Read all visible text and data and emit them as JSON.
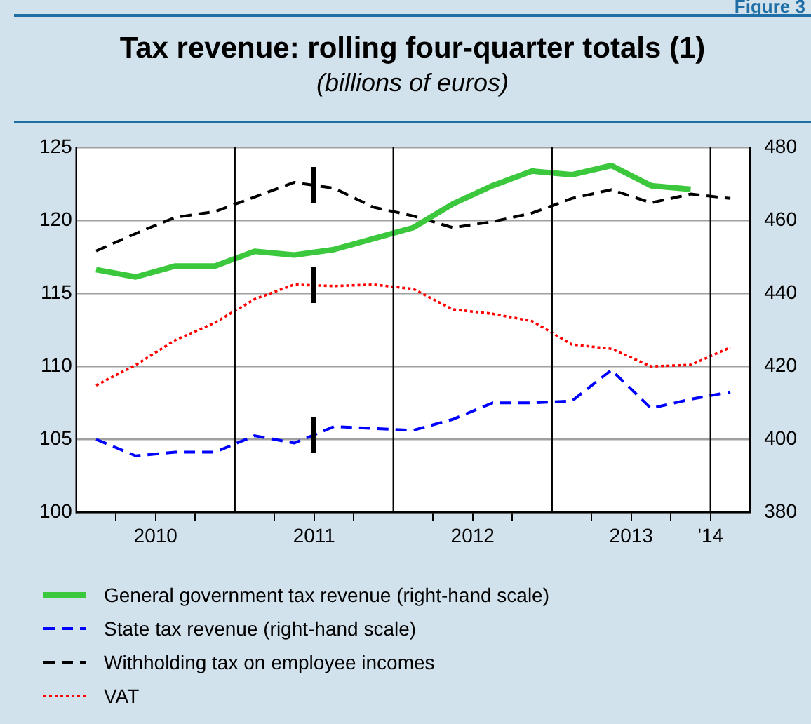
{
  "chart_data": {
    "type": "line",
    "title": "Tax revenue: rolling four-quarter totals (1)",
    "subtitle": "(billions of euros)",
    "annotations": [
      "Figure 3"
    ],
    "x": [
      2010.125,
      2010.375,
      2010.625,
      2010.875,
      2011.125,
      2011.375,
      2011.625,
      2011.875,
      2012.125,
      2012.375,
      2012.625,
      2012.875,
      2013.125,
      2013.375,
      2013.625,
      2013.875,
      2014.125
    ],
    "xlim": [
      2010,
      2014.25
    ],
    "xticks": [
      {
        "value": 2010.25,
        "label": null
      },
      {
        "value": 2010.5,
        "label": "2010"
      },
      {
        "value": 2010.75,
        "label": null
      },
      {
        "value": 2011.25,
        "label": null
      },
      {
        "value": 2011.5,
        "label": "2011"
      },
      {
        "value": 2011.75,
        "label": null
      },
      {
        "value": 2012.25,
        "label": null
      },
      {
        "value": 2012.5,
        "label": "2012"
      },
      {
        "value": 2012.75,
        "label": null
      },
      {
        "value": 2013.25,
        "label": null
      },
      {
        "value": 2013.5,
        "label": "2013"
      },
      {
        "value": 2013.75,
        "label": null
      },
      {
        "value": 2014,
        "label": "'14"
      }
    ],
    "ylim": [
      100,
      125
    ],
    "yticks": [
      100,
      105,
      110,
      115,
      120,
      125
    ],
    "y2lim": [
      380,
      480
    ],
    "y2ticks": [
      380,
      400,
      420,
      440,
      460,
      480
    ],
    "grid": "y",
    "legend": "bottom",
    "marker": "none",
    "ref_lines": [
      {
        "axis": "x",
        "value": 2011,
        "label": null,
        "color": "#000000"
      },
      {
        "axis": "x",
        "value": 2012,
        "label": null,
        "color": "#000000"
      },
      {
        "axis": "x",
        "value": 2013,
        "label": null,
        "color": "#000000"
      },
      {
        "axis": "x",
        "value": 2014,
        "label": null,
        "color": "#000000"
      }
    ],
    "series": [
      {
        "name": "General government tax revenue (right-hand scale)",
        "color": "#3cc83c",
        "axis": "y2",
        "line_style": "solid",
        "values": [
          446.5,
          444.5,
          447.5,
          447.5,
          451.5,
          450.5,
          452,
          455,
          458,
          464.5,
          469.5,
          473.5,
          472.5,
          475,
          469.5,
          468.5,
          null
        ]
      },
      {
        "name": "State tax revenue (right-hand scale)",
        "color": "#0000ff",
        "axis": "y2",
        "line_style": "dashed",
        "values": [
          400,
          395.5,
          396.5,
          396.5,
          401,
          399,
          403.5,
          403,
          402.5,
          405.5,
          410,
          410,
          410.5,
          419,
          408.5,
          411,
          413
        ]
      },
      {
        "name": "Withholding tax on employee incomes",
        "color": "#000000",
        "line_style": "dashed",
        "values": [
          117.9,
          119.1,
          120.2,
          120.6,
          121.6,
          122.6,
          122.2,
          120.9,
          120.3,
          119.5,
          119.9,
          120.5,
          121.5,
          122.1,
          121.2,
          121.8,
          121.5
        ]
      },
      {
        "name": "VAT",
        "color": "#ff0000",
        "line_style": "dotted",
        "values": [
          108.7,
          110.1,
          111.8,
          113.0,
          114.6,
          115.6,
          115.5,
          115.6,
          115.3,
          113.9,
          113.6,
          113.1,
          111.5,
          111.2,
          110.0,
          110.1,
          111.3
        ]
      }
    ]
  }
}
